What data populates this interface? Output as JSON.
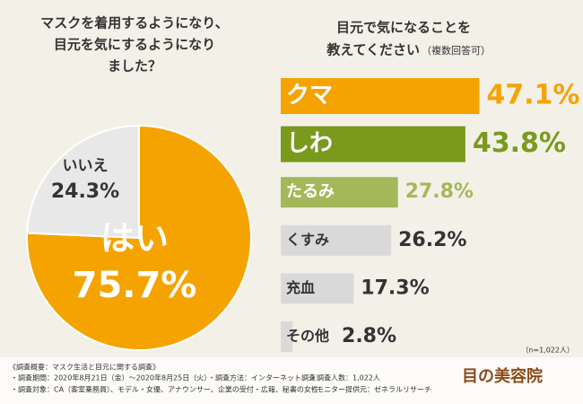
{
  "chart_data": [
    {
      "type": "pie",
      "title": [
        "マスクを着用するようになり、",
        "目元を気にするようになり",
        "ました？"
      ],
      "categories": [
        "はい",
        "いいえ"
      ],
      "values": [
        75.7,
        24.3
      ],
      "value_labels": [
        "75.7%",
        "24.3%"
      ],
      "colors": [
        "#f5a300",
        "#e8e8e8"
      ],
      "label_colors": [
        "#ffffff",
        "#333333"
      ]
    },
    {
      "type": "hbar",
      "title": [
        "目元で気になることを",
        "教えてください"
      ],
      "subtitle": "（複数回答可）",
      "categories": [
        "クマ",
        "しわ",
        "たるみ",
        "くすみ",
        "充血",
        "その他"
      ],
      "values": [
        47.1,
        43.8,
        27.8,
        26.2,
        17.3,
        2.8
      ],
      "value_labels": [
        "47.1%",
        "43.8%",
        "27.8%",
        "26.2%",
        "17.3%",
        "2.8%"
      ],
      "colors": [
        "#f5a300",
        "#7a9a1e",
        "#a4b85a",
        "#d9d9d9",
        "#d9d9d9",
        "#d9d9d9"
      ],
      "label_colors": [
        "#f5a300",
        "#7a9a1e",
        "#a4b85a",
        "#333333",
        "#333333",
        "#333333"
      ],
      "note": "（n=1,022人）"
    }
  ],
  "footer": {
    "heading": "《調査概要：マスク生活と目元に関する調査》",
    "lines": [
      "・調査期間：2020年8月21日（金）～2020年8月25日（火）",
      "・調査方法：インターネット調査",
      "・調査人数：1,022人",
      "・調査対象：CA（客室乗務員）、モデル・女優、アナウンサー、企業の受付・広報、秘書の女性",
      "・モニター提供元：ゼネラルリサーチ"
    ],
    "logo": "目の美容院"
  }
}
